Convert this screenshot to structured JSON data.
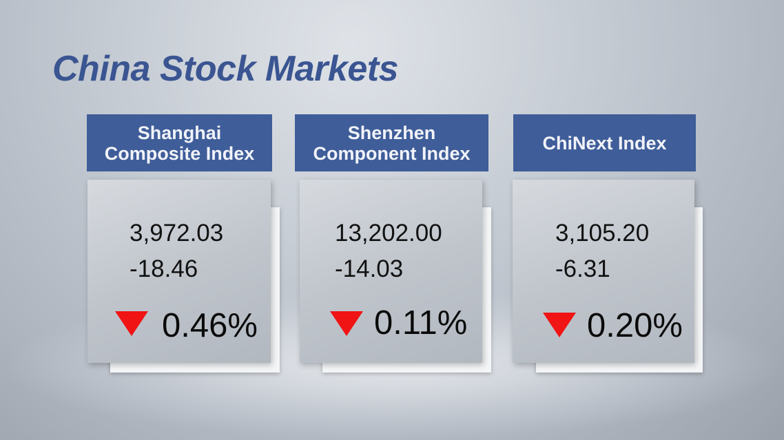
{
  "title": "China Stock Markets",
  "markets": [
    {
      "name": "Shanghai\nComposite Index",
      "line1": "Shanghai",
      "line2": "Composite Index",
      "value": "3,972.03",
      "change": "-18.46",
      "percent": "0.46%",
      "direction": "down"
    },
    {
      "name": "Shenzhen\nComponent Index",
      "line1": "Shenzhen",
      "line2": "Component Index",
      "value": "13,202.00",
      "change": "-14.03",
      "percent": "0.11%",
      "direction": "down"
    },
    {
      "name": "ChiNext Index",
      "line1": "ChiNext Index",
      "line2": "",
      "value": "3,105.20",
      "change": "-6.31",
      "percent": "0.20%",
      "direction": "down"
    }
  ],
  "colors": {
    "header": "#3f5d99",
    "title": "#3a5591",
    "down_arrow": "#f01414"
  },
  "icons": {
    "down": "down-triangle-icon"
  }
}
